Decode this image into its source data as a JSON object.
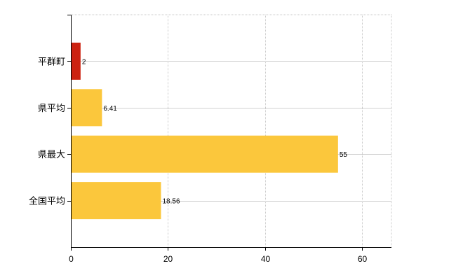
{
  "chart_data": {
    "type": "bar",
    "orientation": "horizontal",
    "categories": [
      "平群町",
      "県平均",
      "県最大",
      "全国平均"
    ],
    "values": [
      2,
      6.41,
      55,
      18.56
    ],
    "value_labels": [
      "2",
      "6.41",
      "55",
      "18.56"
    ],
    "bar_colors": [
      "#cc2211",
      "#fbc73c",
      "#fbc73c",
      "#fbc73c"
    ],
    "xlim": [
      0,
      66
    ],
    "x_ticks": [
      0,
      20,
      40,
      60
    ],
    "x_tick_labels": [
      "0",
      "20",
      "40",
      "60"
    ],
    "grid": "vertical dotted",
    "title": "",
    "xlabel": "",
    "ylabel": ""
  }
}
